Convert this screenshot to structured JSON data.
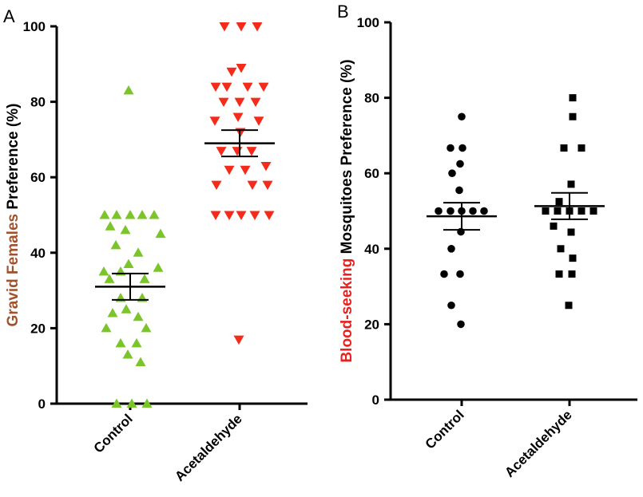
{
  "chart_data": [
    {
      "panel": "A",
      "type": "scatter",
      "ylabel_parts": [
        {
          "text": "Gravid Females",
          "color": "#A0522D"
        },
        {
          "text": " Preference (%)",
          "color": "#000000"
        }
      ],
      "ylim": [
        0,
        100
      ],
      "yticks": [
        "0",
        "20",
        "40",
        "60",
        "80",
        "100"
      ],
      "categories": [
        "Control",
        "Acetaldehyde"
      ],
      "series": [
        {
          "category": "Control",
          "marker": "triangle-up",
          "color": "#7BC52B",
          "points": [
            {
              "dx": -2,
              "y": 83
            },
            {
              "dx": -32,
              "y": 50
            },
            {
              "dx": -17,
              "y": 50
            },
            {
              "dx": 0,
              "y": 50
            },
            {
              "dx": 15,
              "y": 50
            },
            {
              "dx": 30,
              "y": 50
            },
            {
              "dx": -25,
              "y": 47
            },
            {
              "dx": -6,
              "y": 46
            },
            {
              "dx": 38,
              "y": 45
            },
            {
              "dx": -18,
              "y": 42
            },
            {
              "dx": 10,
              "y": 40
            },
            {
              "dx": -2,
              "y": 37
            },
            {
              "dx": 35,
              "y": 36
            },
            {
              "dx": -33,
              "y": 35
            },
            {
              "dx": -12,
              "y": 35
            },
            {
              "dx": -26,
              "y": 33
            },
            {
              "dx": 18,
              "y": 33
            },
            {
              "dx": -12,
              "y": 28
            },
            {
              "dx": 15,
              "y": 28
            },
            {
              "dx": -5,
              "y": 25
            },
            {
              "dx": -22,
              "y": 24
            },
            {
              "dx": 10,
              "y": 23
            },
            {
              "dx": -30,
              "y": 20
            },
            {
              "dx": 20,
              "y": 20
            },
            {
              "dx": -12,
              "y": 16
            },
            {
              "dx": 8,
              "y": 16
            },
            {
              "dx": -3,
              "y": 13
            },
            {
              "dx": 13,
              "y": 11
            },
            {
              "dx": -17,
              "y": 0
            },
            {
              "dx": 2,
              "y": 0
            },
            {
              "dx": 21,
              "y": 0
            }
          ],
          "mean": 31,
          "sem_low": 27.5,
          "sem_high": 34.5
        },
        {
          "category": "Acetaldehyde",
          "marker": "triangle-down",
          "color": "#F42B1A",
          "points": [
            {
              "dx": -19,
              "y": 100
            },
            {
              "dx": 2,
              "y": 100
            },
            {
              "dx": 22,
              "y": 100
            },
            {
              "dx": 2,
              "y": 89
            },
            {
              "dx": -10,
              "y": 88
            },
            {
              "dx": -30,
              "y": 84
            },
            {
              "dx": -16,
              "y": 84
            },
            {
              "dx": 10,
              "y": 84
            },
            {
              "dx": 30,
              "y": 84
            },
            {
              "dx": -20,
              "y": 80
            },
            {
              "dx": 0,
              "y": 80
            },
            {
              "dx": 20,
              "y": 80
            },
            {
              "dx": -2,
              "y": 76
            },
            {
              "dx": -31,
              "y": 75
            },
            {
              "dx": 24,
              "y": 75
            },
            {
              "dx": 1,
              "y": 72
            },
            {
              "dx": -23,
              "y": 67
            },
            {
              "dx": -3,
              "y": 67
            },
            {
              "dx": 15,
              "y": 67
            },
            {
              "dx": 33,
              "y": 63
            },
            {
              "dx": -13,
              "y": 62
            },
            {
              "dx": 7,
              "y": 62
            },
            {
              "dx": -29,
              "y": 58
            },
            {
              "dx": 16,
              "y": 58
            },
            {
              "dx": 35,
              "y": 58
            },
            {
              "dx": -30,
              "y": 50
            },
            {
              "dx": -13,
              "y": 50
            },
            {
              "dx": 2,
              "y": 50
            },
            {
              "dx": 19,
              "y": 50
            },
            {
              "dx": 37,
              "y": 50
            },
            {
              "dx": -1,
              "y": 17
            }
          ],
          "mean": 69,
          "sem_low": 65.5,
          "sem_high": 72.5
        }
      ]
    },
    {
      "panel": "B",
      "type": "scatter",
      "ylabel_parts": [
        {
          "text": "Blood-seeking",
          "color": "#E8201E"
        },
        {
          "text": " Mosquitoes Preference (%)",
          "color": "#000000"
        }
      ],
      "ylim": [
        0,
        100
      ],
      "yticks": [
        "0",
        "20",
        "40",
        "60",
        "80",
        "100"
      ],
      "categories": [
        "Control",
        "Acetaldehyde"
      ],
      "series": [
        {
          "category": "Control",
          "marker": "circle",
          "color": "#000000",
          "points": [
            {
              "dx": 0,
              "y": 75
            },
            {
              "dx": -14,
              "y": 66.7
            },
            {
              "dx": 1,
              "y": 66.7
            },
            {
              "dx": -2,
              "y": 62.5
            },
            {
              "dx": -12,
              "y": 60
            },
            {
              "dx": -3,
              "y": 55.5
            },
            {
              "dx": -29,
              "y": 50
            },
            {
              "dx": -14,
              "y": 50
            },
            {
              "dx": 0,
              "y": 50
            },
            {
              "dx": 14,
              "y": 50
            },
            {
              "dx": 28,
              "y": 50
            },
            {
              "dx": -1,
              "y": 44.5
            },
            {
              "dx": -13,
              "y": 40
            },
            {
              "dx": -22,
              "y": 33.3
            },
            {
              "dx": -2,
              "y": 33.3
            },
            {
              "dx": -13,
              "y": 25
            },
            {
              "dx": -1,
              "y": 20
            }
          ],
          "mean": 48.6,
          "sem_low": 45.0,
          "sem_high": 52.2
        },
        {
          "category": "Acetaldehyde",
          "marker": "square",
          "color": "#000000",
          "points": [
            {
              "dx": 4,
              "y": 80
            },
            {
              "dx": 4,
              "y": 75
            },
            {
              "dx": -7,
              "y": 66.7
            },
            {
              "dx": 15,
              "y": 66.7
            },
            {
              "dx": 2,
              "y": 57.1
            },
            {
              "dx": -13,
              "y": 52.5
            },
            {
              "dx": -30,
              "y": 50
            },
            {
              "dx": -15,
              "y": 50
            },
            {
              "dx": 0,
              "y": 50
            },
            {
              "dx": 15,
              "y": 50
            },
            {
              "dx": 30,
              "y": 50
            },
            {
              "dx": -20,
              "y": 46
            },
            {
              "dx": 2,
              "y": 44.4
            },
            {
              "dx": -11,
              "y": 40
            },
            {
              "dx": 4,
              "y": 37.5
            },
            {
              "dx": -13,
              "y": 33.3
            },
            {
              "dx": 3,
              "y": 33.3
            },
            {
              "dx": -1,
              "y": 25
            }
          ],
          "mean": 51.3,
          "sem_low": 47.8,
          "sem_high": 54.8
        }
      ]
    }
  ]
}
